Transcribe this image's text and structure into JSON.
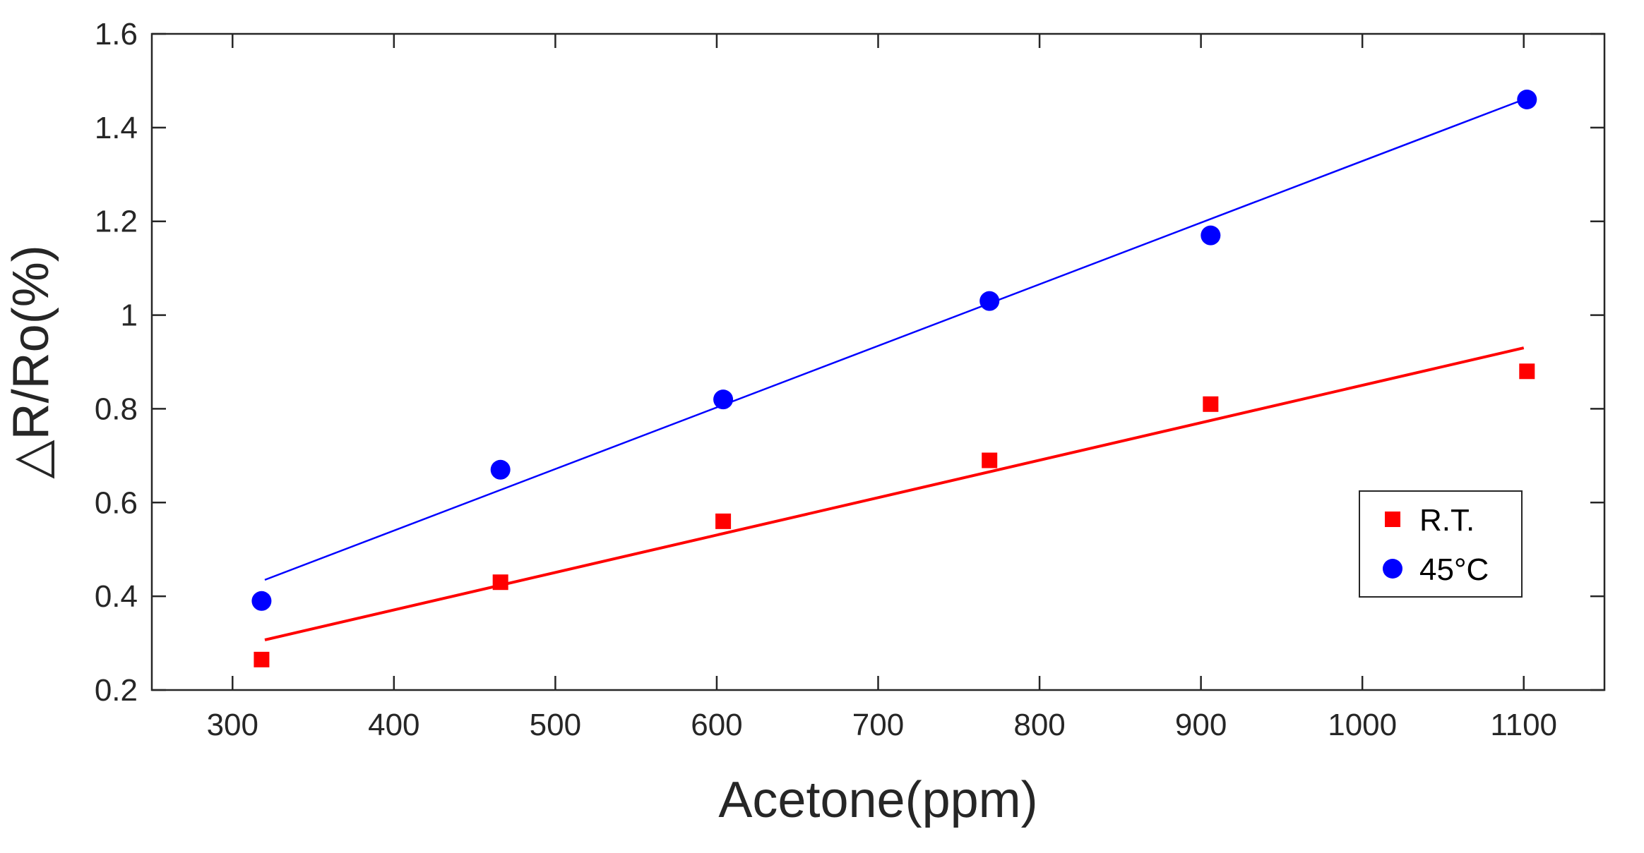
{
  "chart_data": {
    "type": "scatter",
    "title": "",
    "xlabel": "Acetone(ppm)",
    "ylabel": "△R/Ro(%)",
    "xlim": [
      250,
      1150
    ],
    "ylim": [
      0.2,
      1.6
    ],
    "xticks": [
      300,
      400,
      500,
      600,
      700,
      800,
      900,
      1000,
      1100
    ],
    "xtick_labels": [
      "300",
      "400",
      "500",
      "600",
      "700",
      "800",
      "900",
      "1000",
      "1100"
    ],
    "yticks": [
      0.2,
      0.4,
      0.6,
      0.8,
      1.0,
      1.2,
      1.4,
      1.6
    ],
    "ytick_labels": [
      "0.2",
      "0.4",
      "0.6",
      "0.8",
      "1",
      "1.2",
      "1.4",
      "1.6"
    ],
    "grid": false,
    "legend_position": "right",
    "series": [
      {
        "name": "R.T.",
        "marker": "square",
        "color": "#ff0000",
        "x": [
          318,
          466,
          604,
          769,
          906,
          1102
        ],
        "y": [
          0.265,
          0.43,
          0.56,
          0.69,
          0.81,
          0.88
        ],
        "fit": {
          "x": [
            320,
            1100
          ],
          "y": [
            0.307,
            0.93
          ]
        }
      },
      {
        "name": "45°C",
        "marker": "circle",
        "color": "#0000ff",
        "x": [
          318,
          466,
          604,
          769,
          906,
          1102
        ],
        "y": [
          0.39,
          0.67,
          0.82,
          1.03,
          1.17,
          1.46
        ],
        "fit": {
          "x": [
            320,
            1100
          ],
          "y": [
            0.435,
            1.46
          ]
        }
      }
    ]
  }
}
